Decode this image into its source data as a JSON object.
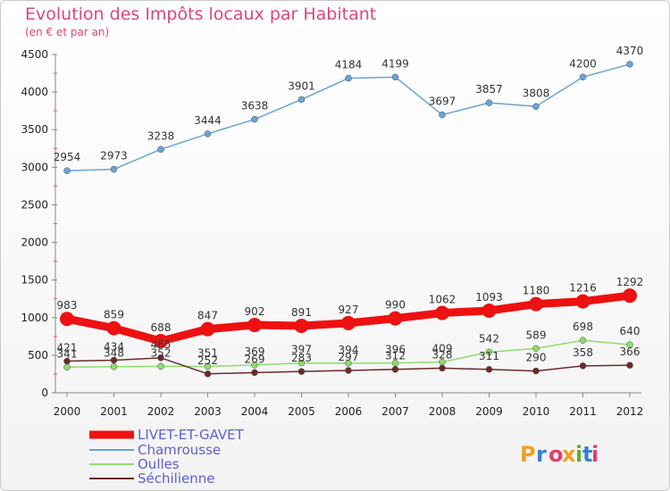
{
  "chart_data": {
    "type": "line",
    "title": "Evolution des Impôts locaux par Habitant",
    "subtitle": "(en € et par an)",
    "categories": [
      "2000",
      "2001",
      "2002",
      "2003",
      "2004",
      "2005",
      "2006",
      "2007",
      "2008",
      "2009",
      "2010",
      "2011",
      "2012"
    ],
    "ylim": [
      0,
      4500
    ],
    "yticks": [
      0,
      500,
      1000,
      1500,
      2000,
      2500,
      3000,
      3500,
      4000,
      4500
    ],
    "grid": false,
    "legend_position": "bottom-left",
    "series": [
      {
        "name": "Chamrousse",
        "color": "#6ba3d6",
        "values": [
          2954,
          2973,
          3238,
          3444,
          3638,
          3901,
          4184,
          4199,
          3697,
          3857,
          3808,
          4200,
          4370
        ]
      },
      {
        "name": "Oulles",
        "color": "#8fdc6e",
        "values": [
          341,
          348,
          352,
          351,
          369,
          397,
          394,
          396,
          409,
          542,
          589,
          698,
          640
        ]
      },
      {
        "name": "Séchilienne",
        "color": "#6b2a2a",
        "values": [
          421,
          434,
          465,
          252,
          269,
          283,
          297,
          312,
          328,
          311,
          290,
          358,
          366
        ]
      },
      {
        "name": "LIVET-ET-GAVET",
        "color": "#ee1111",
        "values": [
          983,
          859,
          688,
          847,
          902,
          891,
          927,
          990,
          1062,
          1093,
          1180,
          1216,
          1292
        ]
      }
    ],
    "legend": [
      "LIVET-ET-GAVET",
      "Chamrousse",
      "Oulles",
      "Séchilienne"
    ]
  },
  "logo": {
    "text": "Proxiti"
  }
}
